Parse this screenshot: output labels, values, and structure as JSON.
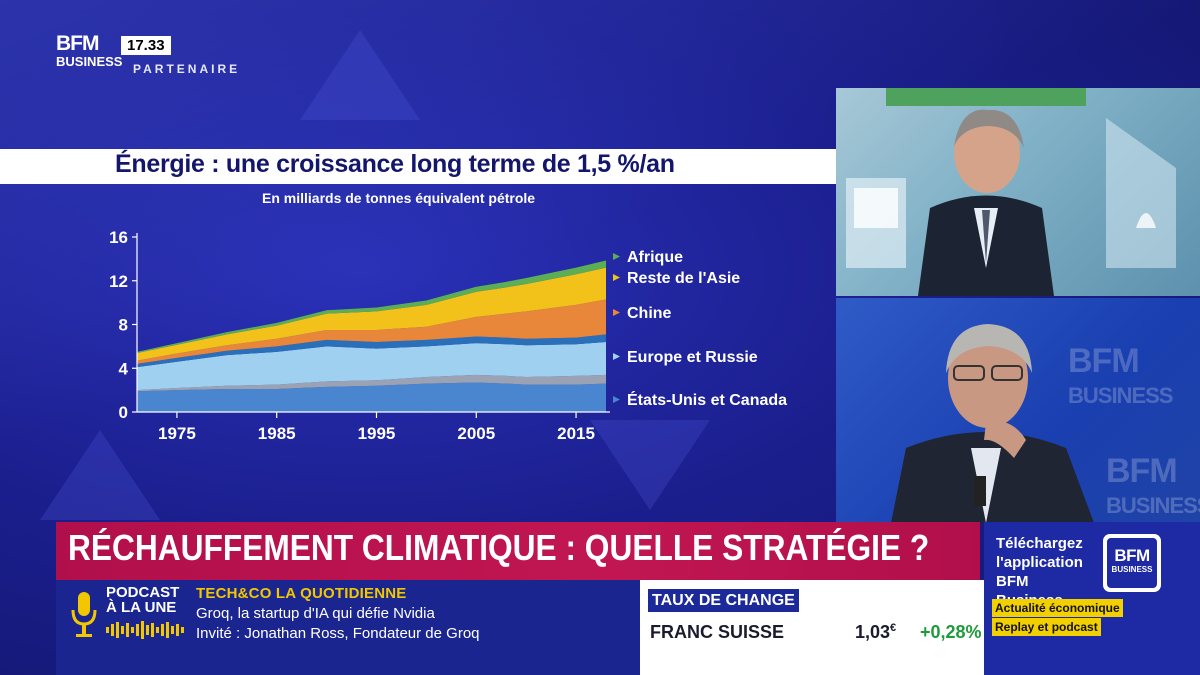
{
  "header": {
    "logo_line1": "BFM",
    "logo_line2": "BUSINESS",
    "time": "17.33",
    "label": "PARTENAIRE"
  },
  "chart_data": {
    "type": "area",
    "title": "Énergie : une croissance long terme de 1,5 %/an",
    "subtitle": "En milliards de tonnes équivalent pétrole",
    "xlabel": "",
    "ylabel": "",
    "x": [
      1971,
      1975,
      1980,
      1985,
      1990,
      1995,
      2000,
      2005,
      2008,
      2010,
      2015,
      2018
    ],
    "xticks": [
      "1975",
      "1985",
      "1995",
      "2005",
      "2015"
    ],
    "xtick_values": [
      1975,
      1985,
      1995,
      2005,
      2015
    ],
    "yticks": [
      "0",
      "4",
      "8",
      "12",
      "16"
    ],
    "ylim": [
      0,
      16
    ],
    "xlim": [
      1971,
      2018
    ],
    "stacked": true,
    "series": [
      {
        "name": "États-Unis et Canada",
        "color": "#4a86cf",
        "values": [
          1.9,
          2.0,
          2.1,
          2.1,
          2.3,
          2.4,
          2.6,
          2.7,
          2.6,
          2.5,
          2.5,
          2.6
        ]
      },
      {
        "name": "",
        "color": "#9aa2b3",
        "values": [
          0.1,
          0.2,
          0.3,
          0.4,
          0.5,
          0.5,
          0.6,
          0.7,
          0.7,
          0.7,
          0.8,
          0.8
        ]
      },
      {
        "name": "Europe et Russie",
        "color": "#9fd0f0",
        "values": [
          2.1,
          2.4,
          2.8,
          3.0,
          3.2,
          2.9,
          2.8,
          2.9,
          2.9,
          2.9,
          2.9,
          3.0
        ]
      },
      {
        "name": "",
        "color": "#2a6fba",
        "values": [
          0.3,
          0.35,
          0.4,
          0.5,
          0.6,
          0.6,
          0.6,
          0.6,
          0.6,
          0.6,
          0.6,
          0.7
        ]
      },
      {
        "name": "Chine",
        "color": "#e8863a",
        "values": [
          0.3,
          0.4,
          0.5,
          0.7,
          0.9,
          1.1,
          1.2,
          1.8,
          2.2,
          2.5,
          3.0,
          3.2
        ]
      },
      {
        "name": "Reste de l'Asie",
        "color": "#f2c21a",
        "values": [
          0.7,
          0.8,
          1.0,
          1.2,
          1.5,
          1.7,
          2.0,
          2.3,
          2.4,
          2.5,
          2.8,
          2.9
        ]
      },
      {
        "name": "Afrique",
        "color": "#5cae54",
        "values": [
          0.1,
          0.15,
          0.2,
          0.25,
          0.3,
          0.35,
          0.4,
          0.45,
          0.5,
          0.55,
          0.6,
          0.65
        ]
      }
    ],
    "legend": [
      "Afrique",
      "Reste de l'Asie",
      "Chine",
      "Europe et Russie",
      "États-Unis et Canada"
    ]
  },
  "lower_third": {
    "headline": "RÉCHAUFFEMENT CLIMATIQUE : QUELLE STRATÉGIE ?",
    "podcast_label": "PODCAST À LA UNE",
    "show_title": "TECH&CO LA QUOTIDIENNE",
    "line1": "Groq, la startup d'IA qui défie Nvidia",
    "line2": "Invité : Jonathan Ross, Fondateur de Groq"
  },
  "rates": {
    "title": "TAUX DE CHANGE",
    "name": "FRANC SUISSE",
    "value": "1,03",
    "unit": "€",
    "change": "+0,28%"
  },
  "promo": {
    "text": "Téléchargez l'application BFM Business",
    "logo_line1": "BFM",
    "logo_line2": "BUSINESS",
    "tag1": "Actualité économique",
    "tag2": "Replay et podcast"
  },
  "watermarks": {
    "line1": "BFM",
    "line2": "BUSINESS"
  }
}
